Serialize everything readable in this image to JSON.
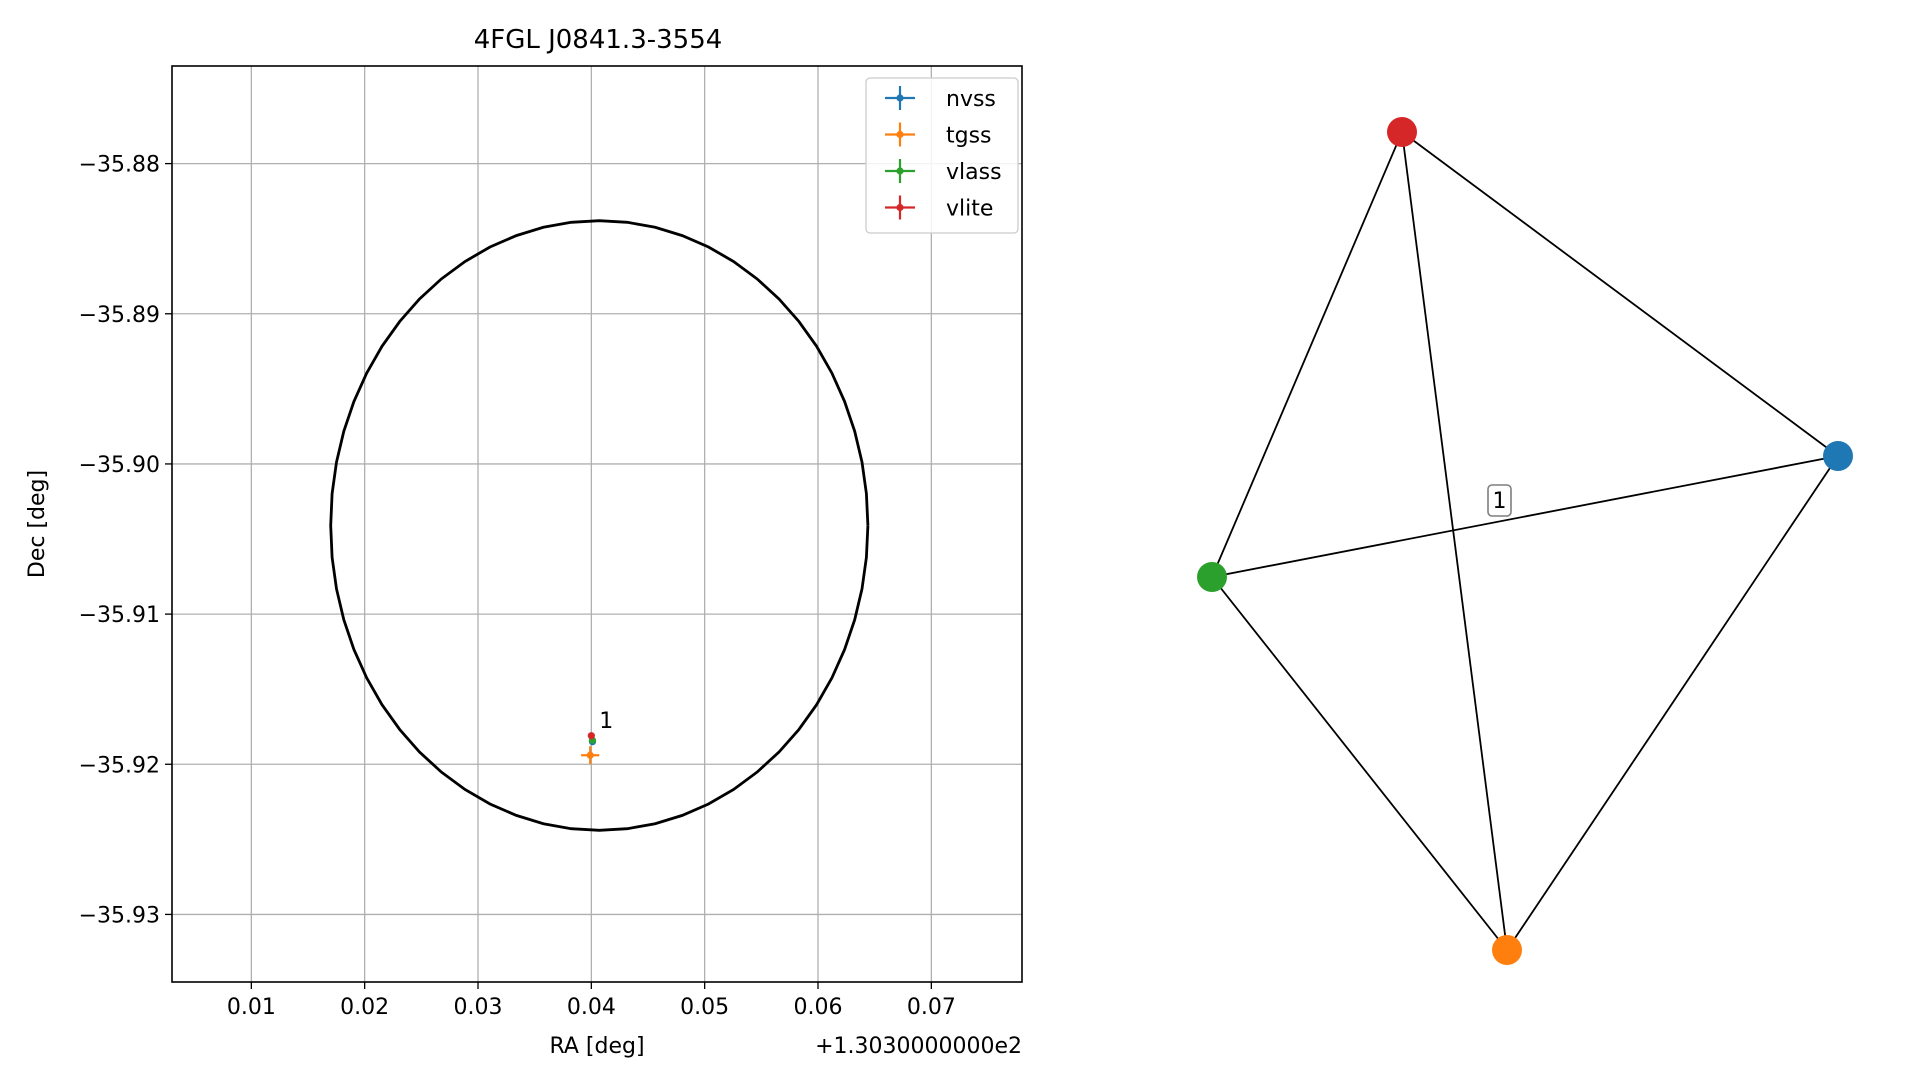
{
  "chart_data": [
    {
      "type": "scatter",
      "title": "4FGL J0841.3-3554",
      "xlabel": "RA [deg]",
      "ylabel": "Dec [deg]",
      "x_offset_label": "+1.3030000000e2",
      "xlim": [
        0.003,
        0.078
      ],
      "ylim": [
        -35.9345,
        -35.8735
      ],
      "x_ticks": [
        0.01,
        0.02,
        0.03,
        0.04,
        0.05,
        0.06,
        0.07
      ],
      "x_tick_labels": [
        "0.01",
        "0.02",
        "0.03",
        "0.04",
        "0.05",
        "0.06",
        "0.07"
      ],
      "y_ticks": [
        -35.88,
        -35.89,
        -35.9,
        -35.91,
        -35.92,
        -35.93
      ],
      "y_tick_labels": [
        "−35.88",
        "−35.89",
        "−35.90",
        "−35.91",
        "−35.92",
        "−35.93"
      ],
      "grid": true,
      "legend": "top-right",
      "ellipse": {
        "center": [
          0.0407,
          -35.9041
        ],
        "semi_x": 0.0237,
        "semi_y": 0.0203
      },
      "series": [
        {
          "name": "nvss",
          "color": "#1f77b4",
          "x": [
            0.0401
          ],
          "y": [
            -35.9185
          ],
          "xerr": 0.0002,
          "yerr": 0.0002
        },
        {
          "name": "tgss",
          "color": "#ff7f0e",
          "x": [
            0.0399
          ],
          "y": [
            -35.9194
          ],
          "xerr": 0.0008,
          "yerr": 0.0006
        },
        {
          "name": "vlass",
          "color": "#2ca02c",
          "x": [
            0.0401
          ],
          "y": [
            -35.9184
          ],
          "xerr": 0.0001,
          "yerr": 0.0001
        },
        {
          "name": "vlite",
          "color": "#d62728",
          "x": [
            0.04
          ],
          "y": [
            -35.9181
          ],
          "xerr": 0.0001,
          "yerr": 0.0001
        }
      ],
      "annotations": [
        {
          "text": "1",
          "x": 0.0407,
          "y": -35.9176
        }
      ]
    },
    {
      "type": "network",
      "nodes": [
        {
          "id": "vlite",
          "color": "#d62728"
        },
        {
          "id": "nvss",
          "color": "#1f77b4"
        },
        {
          "id": "vlass",
          "color": "#2ca02c"
        },
        {
          "id": "tgss",
          "color": "#ff7f0e"
        }
      ],
      "edges": [
        [
          "vlite",
          "nvss"
        ],
        [
          "vlite",
          "vlass"
        ],
        [
          "vlite",
          "tgss"
        ],
        [
          "nvss",
          "vlass"
        ],
        [
          "nvss",
          "tgss"
        ],
        [
          "vlass",
          "tgss"
        ]
      ],
      "edge_label": "1"
    }
  ]
}
